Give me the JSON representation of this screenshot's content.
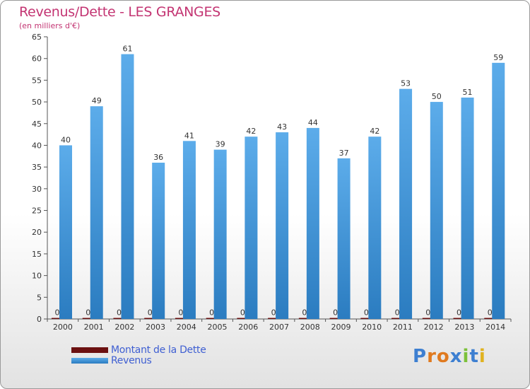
{
  "title": "Revenus/Dette - LES GRANGES",
  "subtitle": "(en milliers d'€)",
  "logo": "Proxiti",
  "colors": {
    "title": "#c33472",
    "revenus": "#4a9de0",
    "dette": "#6b1010",
    "legend_text": "#3f5fd2",
    "grid": "#555555"
  },
  "legend": [
    {
      "label": "Montant de la Dette",
      "color": "#6b1010"
    },
    {
      "label": "Revenus",
      "color": "#4a9de0"
    }
  ],
  "chart_data": {
    "type": "bar",
    "title": "Revenus/Dette - LES GRANGES",
    "subtitle": "(en milliers d'€)",
    "categories": [
      "2000",
      "2001",
      "2002",
      "2003",
      "2004",
      "2005",
      "2006",
      "2007",
      "2008",
      "2009",
      "2010",
      "2011",
      "2012",
      "2013",
      "2014"
    ],
    "series": [
      {
        "name": "Montant de la Dette",
        "values": [
          0,
          0,
          0,
          0,
          0,
          0,
          0,
          0,
          0,
          0,
          0,
          0,
          0,
          0,
          0
        ]
      },
      {
        "name": "Revenus",
        "values": [
          40,
          49,
          61,
          36,
          41,
          39,
          42,
          43,
          44,
          37,
          42,
          53,
          50,
          51,
          59
        ]
      }
    ],
    "ylim": [
      0,
      65
    ],
    "yticks": [
      0,
      5,
      10,
      15,
      20,
      25,
      30,
      35,
      40,
      45,
      50,
      55,
      60,
      65
    ],
    "grid": false,
    "legend_position": "bottom-left"
  }
}
